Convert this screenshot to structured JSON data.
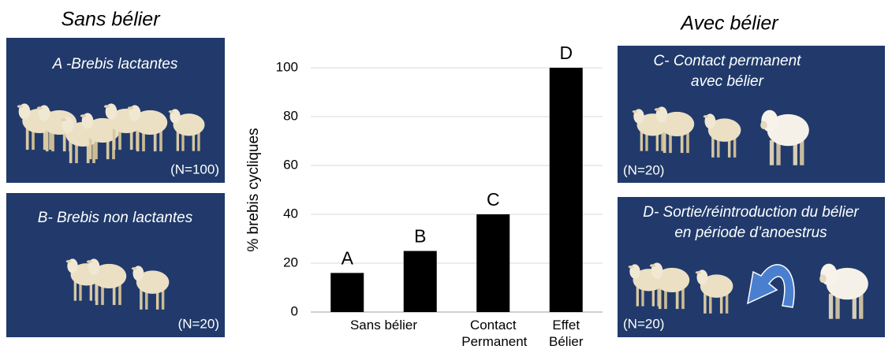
{
  "headings": {
    "left": "Sans bélier",
    "right": "Avec bélier"
  },
  "panels": [
    {
      "title": [
        "A -Brebis lactantes"
      ],
      "n": "(N=100)"
    },
    {
      "title": [
        "B- Brebis non lactantes"
      ],
      "n": "(N=20)"
    },
    {
      "title": [
        "C- Contact permanent",
        "avec bélier"
      ],
      "n": "(N=20)"
    },
    {
      "title": [
        "D- Sortie/réintroduction du bélier",
        "en période d’anoestrus"
      ],
      "n": "(N=20)"
    }
  ],
  "chart_data": {
    "type": "bar",
    "y_label": "% brebis cycliques",
    "categories": [
      "Sans bélier",
      null,
      "Contact Permanent",
      "Effet Bélier"
    ],
    "values": [
      16,
      25,
      40,
      100
    ],
    "bar_labels": [
      "A",
      "B",
      "C",
      "D"
    ],
    "color": "#000000",
    "ylim": [
      0,
      100
    ],
    "yticks": [
      0,
      20,
      40,
      60,
      80,
      100
    ],
    "grid": true
  }
}
